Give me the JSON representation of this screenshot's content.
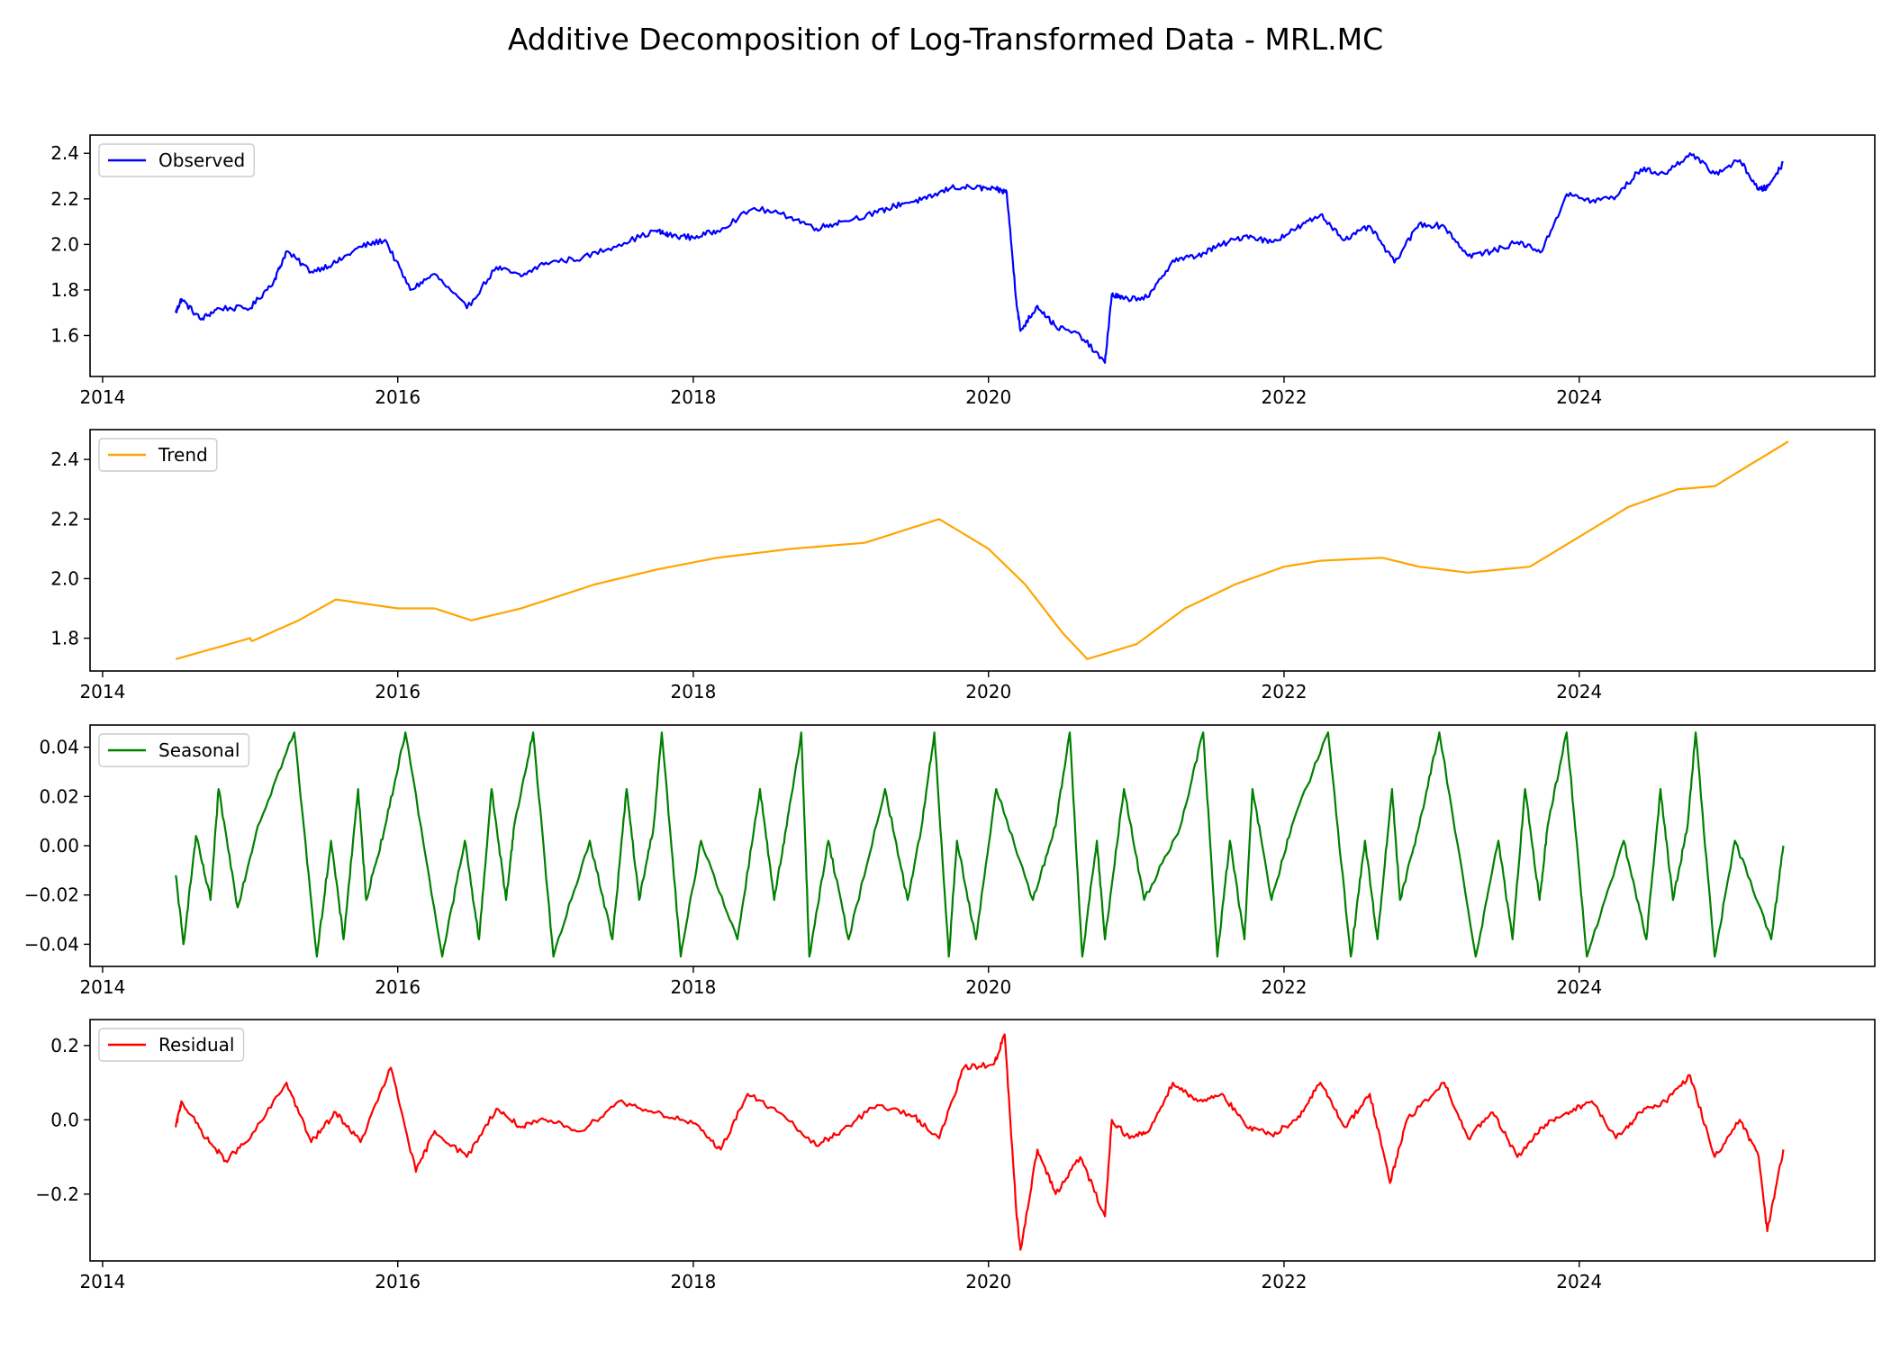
{
  "title": "Additive Decomposition of Log-Transformed Data - MRL.MC",
  "chart_data": [
    {
      "type": "line",
      "series": [
        {
          "name": "Observed",
          "color": "#0000ff",
          "x": [
            "2014-07-01",
            "2014-07-15",
            "2014-09-01",
            "2014-10-15",
            "2015-01-01",
            "2015-03-01",
            "2015-04-01",
            "2015-06-01",
            "2015-08-01",
            "2015-10-01",
            "2015-12-01",
            "2016-02-01",
            "2016-04-01",
            "2016-06-20",
            "2016-09-01",
            "2016-11-01",
            "2017-01-01",
            "2017-04-01",
            "2017-07-01",
            "2017-10-01",
            "2017-11-01",
            "2018-01-01",
            "2018-03-01",
            "2018-06-01",
            "2018-09-01",
            "2018-11-01",
            "2019-01-01",
            "2019-04-01",
            "2019-06-01",
            "2019-08-01",
            "2019-10-01",
            "2019-12-01",
            "2020-01-20",
            "2020-02-15",
            "2020-03-10",
            "2020-03-20",
            "2020-05-01",
            "2020-06-15",
            "2020-08-15",
            "2020-10-15",
            "2020-11-01",
            "2020-12-01",
            "2021-02-01",
            "2021-04-01",
            "2021-06-01",
            "2021-08-01",
            "2021-10-01",
            "2021-12-01",
            "2022-02-01",
            "2022-04-01",
            "2022-06-01",
            "2022-08-01",
            "2022-10-01",
            "2022-12-01",
            "2023-02-01",
            "2023-04-01",
            "2023-06-01",
            "2023-08-01",
            "2023-10-01",
            "2023-12-01",
            "2024-02-01",
            "2024-04-01",
            "2024-06-01",
            "2024-08-01",
            "2024-10-01",
            "2024-12-01",
            "2025-02-01",
            "2025-03-20",
            "2025-04-10",
            "2025-05-20"
          ],
          "values": [
            1.7,
            1.76,
            1.67,
            1.72,
            1.72,
            1.84,
            1.97,
            1.88,
            1.92,
            1.99,
            2.02,
            1.8,
            1.87,
            1.72,
            1.9,
            1.86,
            1.92,
            1.94,
            2.0,
            2.06,
            2.04,
            2.03,
            2.06,
            2.16,
            2.12,
            2.07,
            2.1,
            2.14,
            2.18,
            2.2,
            2.25,
            2.25,
            2.24,
            2.23,
            1.75,
            1.62,
            1.73,
            1.64,
            1.6,
            1.48,
            1.78,
            1.76,
            1.77,
            1.93,
            1.95,
            2.0,
            2.04,
            2.01,
            2.07,
            2.13,
            2.02,
            2.08,
            1.92,
            2.09,
            2.08,
            1.95,
            1.97,
            2.01,
            1.97,
            2.22,
            2.19,
            2.21,
            2.33,
            2.31,
            2.4,
            2.31,
            2.37,
            2.24,
            2.25,
            2.36
          ]
        }
      ],
      "xlim": [
        "2013-12-01",
        "2026-01-01"
      ],
      "ylim": [
        1.42,
        2.48
      ],
      "xticks": [
        "2014",
        "2016",
        "2018",
        "2020",
        "2022",
        "2024"
      ],
      "yticks": [
        1.6,
        1.8,
        2.0,
        2.2,
        2.4
      ],
      "ytick_labels": [
        "1.6",
        "1.8",
        "2.0",
        "2.2",
        "2.4"
      ],
      "legend": "upper-left",
      "grid": false
    },
    {
      "type": "line",
      "series": [
        {
          "name": "Trend",
          "color": "#ffa500",
          "x": [
            "2014-07-01",
            "2015-01-01",
            "2015-01-05",
            "2015-05-01",
            "2015-08-01",
            "2016-01-01",
            "2016-04-01",
            "2016-07-01",
            "2016-11-01",
            "2017-05-01",
            "2017-10-01",
            "2018-03-01",
            "2018-09-01",
            "2019-03-01",
            "2019-09-01",
            "2020-01-01",
            "2020-04-01",
            "2020-07-01",
            "2020-09-01",
            "2021-01-01",
            "2021-05-01",
            "2021-09-01",
            "2022-01-01",
            "2022-04-01",
            "2022-09-01",
            "2022-12-01",
            "2023-04-01",
            "2023-09-01",
            "2024-01-01",
            "2024-05-01",
            "2024-09-01",
            "2024-12-01",
            "2025-06-01"
          ],
          "values": [
            1.73,
            1.8,
            1.79,
            1.86,
            1.93,
            1.9,
            1.9,
            1.86,
            1.9,
            1.98,
            2.03,
            2.07,
            2.1,
            2.12,
            2.2,
            2.1,
            1.98,
            1.82,
            1.73,
            1.78,
            1.9,
            1.98,
            2.04,
            2.06,
            2.07,
            2.04,
            2.02,
            2.04,
            2.14,
            2.24,
            2.3,
            2.31,
            2.46
          ]
        }
      ],
      "xlim": [
        "2013-12-01",
        "2026-01-01"
      ],
      "ylim": [
        1.69,
        2.5
      ],
      "xticks": [
        "2014",
        "2016",
        "2018",
        "2020",
        "2022",
        "2024"
      ],
      "yticks": [
        1.8,
        2.0,
        2.2,
        2.4
      ],
      "ytick_labels": [
        "1.8",
        "2.0",
        "2.2",
        "2.4"
      ],
      "legend": "upper-left",
      "grid": false
    },
    {
      "type": "line",
      "series": [
        {
          "name": "Seasonal",
          "color": "#008000",
          "x": [
            "2014-07-01",
            "2014-07-20",
            "2014-08-20",
            "2014-09-25",
            "2014-10-15",
            "2014-12-01",
            "2015-01-20",
            "2015-04-20",
            "2015-06-15",
            "2015-07-20",
            "2015-08-20",
            "2015-09-25",
            "2015-10-15",
            "2015-12-01",
            "2016-01-20",
            "2016-04-20",
            "2016-06-15",
            "2016-07-20",
            "2016-08-20",
            "2016-09-25",
            "2016-10-15",
            "2016-12-01",
            "2017-01-20",
            "2017-04-20",
            "2017-06-15",
            "2017-07-20",
            "2017-08-20",
            "2017-09-25",
            "2017-10-15",
            "2017-12-01",
            "2018-01-20",
            "2018-04-20",
            "2018-06-15",
            "2018-07-20",
            "2018-08-20",
            "2018-09-25",
            "2018-10-15",
            "2018-12-01",
            "2019-01-20",
            "2019-04-20",
            "2019-06-15",
            "2019-07-20",
            "2019-08-20",
            "2019-09-25",
            "2019-10-15",
            "2019-12-01",
            "2020-01-20",
            "2020-04-20",
            "2020-06-15",
            "2020-07-20",
            "2020-08-20",
            "2020-09-25",
            "2020-10-15",
            "2020-12-01",
            "2021-01-20",
            "2021-04-20",
            "2021-06-15",
            "2021-07-20",
            "2021-08-20",
            "2021-09-25",
            "2021-10-15",
            "2021-12-01",
            "2022-01-20",
            "2022-04-20",
            "2022-06-15",
            "2022-07-20",
            "2022-08-20",
            "2022-09-25",
            "2022-10-15",
            "2022-12-01",
            "2023-01-20",
            "2023-04-20",
            "2023-06-15",
            "2023-07-20",
            "2023-08-20",
            "2023-09-25",
            "2023-10-15",
            "2023-12-01",
            "2024-01-20",
            "2024-04-20",
            "2024-06-15",
            "2024-07-20",
            "2024-08-20",
            "2024-09-25",
            "2024-10-15",
            "2024-12-01",
            "2025-01-20",
            "2025-04-20",
            "2025-05-20"
          ],
          "values": [
            -0.012,
            -0.04,
            0.004,
            -0.022,
            0.023,
            -0.025,
            0.008,
            0.046,
            -0.045,
            0.002,
            -0.038,
            0.023,
            -0.022,
            0.008,
            0.046,
            -0.045,
            0.002,
            -0.038,
            0.023,
            -0.022,
            0.008,
            0.046,
            -0.045,
            0.002,
            -0.038,
            0.023,
            -0.022,
            0.008,
            0.046,
            -0.045,
            0.002,
            -0.038,
            0.023,
            -0.022,
            0.008,
            0.046,
            -0.045,
            0.002,
            -0.038,
            0.023,
            -0.022,
            0.008,
            0.046,
            -0.045,
            0.002,
            -0.038,
            0.023,
            -0.022,
            0.008,
            0.046,
            -0.045,
            0.002,
            -0.038,
            0.023,
            -0.022,
            0.008,
            0.046,
            -0.045,
            0.002,
            -0.038,
            0.023,
            -0.022,
            0.008,
            0.046,
            -0.045,
            0.002,
            -0.038,
            0.023,
            -0.022,
            0.008,
            0.046,
            -0.045,
            0.002,
            -0.038,
            0.023,
            -0.022,
            0.008,
            0.046,
            -0.045,
            0.002,
            -0.038,
            0.023,
            -0.022,
            0.008,
            0.046,
            -0.045,
            0.002,
            -0.038,
            0.0
          ]
        }
      ],
      "xlim": [
        "2013-12-01",
        "2026-01-01"
      ],
      "ylim": [
        -0.049,
        0.049
      ],
      "xticks": [
        "2014",
        "2016",
        "2018",
        "2020",
        "2022",
        "2024"
      ],
      "yticks": [
        -0.04,
        -0.02,
        0.0,
        0.02,
        0.04
      ],
      "ytick_labels": [
        "−0.04",
        "−0.02",
        "0.00",
        "0.02",
        "0.04"
      ],
      "legend": "upper-left",
      "grid": false
    },
    {
      "type": "line",
      "series": [
        {
          "name": "Residual",
          "color": "#ff0000",
          "x": [
            "2014-07-01",
            "2014-07-15",
            "2014-09-15",
            "2014-11-01",
            "2015-01-01",
            "2015-04-01",
            "2015-06-01",
            "2015-08-01",
            "2015-10-01",
            "2015-12-15",
            "2016-02-15",
            "2016-04-01",
            "2016-06-20",
            "2016-09-01",
            "2016-11-01",
            "2017-01-01",
            "2017-04-01",
            "2017-07-01",
            "2017-10-01",
            "2018-01-01",
            "2018-03-10",
            "2018-05-15",
            "2018-08-01",
            "2018-11-01",
            "2019-01-01",
            "2019-04-01",
            "2019-07-01",
            "2019-09-01",
            "2019-11-01",
            "2020-01-15",
            "2020-02-10",
            "2020-03-10",
            "2020-03-20",
            "2020-05-01",
            "2020-06-15",
            "2020-08-15",
            "2020-10-15",
            "2020-11-01",
            "2020-12-15",
            "2021-02-01",
            "2021-04-01",
            "2021-06-01",
            "2021-08-01",
            "2021-10-01",
            "2021-12-01",
            "2022-02-01",
            "2022-04-01",
            "2022-06-01",
            "2022-08-01",
            "2022-09-20",
            "2022-11-01",
            "2023-02-01",
            "2023-04-01",
            "2023-06-01",
            "2023-08-01",
            "2023-10-01",
            "2023-12-01",
            "2024-02-01",
            "2024-04-01",
            "2024-06-01",
            "2024-08-01",
            "2024-10-01",
            "2024-12-01",
            "2025-02-01",
            "2025-03-20",
            "2025-04-10",
            "2025-05-20"
          ],
          "values": [
            -0.02,
            0.05,
            -0.05,
            -0.11,
            -0.05,
            0.1,
            -0.06,
            0.02,
            -0.06,
            0.14,
            -0.14,
            -0.03,
            -0.1,
            0.03,
            -0.02,
            0.0,
            -0.03,
            0.05,
            0.02,
            -0.01,
            -0.08,
            0.07,
            0.02,
            -0.07,
            -0.03,
            0.04,
            0.01,
            -0.05,
            0.14,
            0.15,
            0.23,
            -0.25,
            -0.35,
            -0.08,
            -0.2,
            -0.1,
            -0.26,
            0.0,
            -0.05,
            -0.03,
            0.1,
            0.05,
            0.07,
            -0.02,
            -0.04,
            0.0,
            0.1,
            -0.02,
            0.07,
            -0.17,
            0.0,
            0.1,
            -0.05,
            0.02,
            -0.1,
            -0.02,
            0.02,
            0.05,
            -0.05,
            0.02,
            0.05,
            0.12,
            -0.1,
            0.0,
            -0.1,
            -0.3,
            -0.08
          ]
        }
      ],
      "xlim": [
        "2013-12-01",
        "2026-01-01"
      ],
      "ylim": [
        -0.38,
        0.27
      ],
      "xticks": [
        "2014",
        "2016",
        "2018",
        "2020",
        "2022",
        "2024"
      ],
      "yticks": [
        -0.2,
        0.0,
        0.2
      ],
      "ytick_labels": [
        "−0.2",
        "0.0",
        "0.2"
      ],
      "legend": "upper-left",
      "grid": false
    }
  ]
}
